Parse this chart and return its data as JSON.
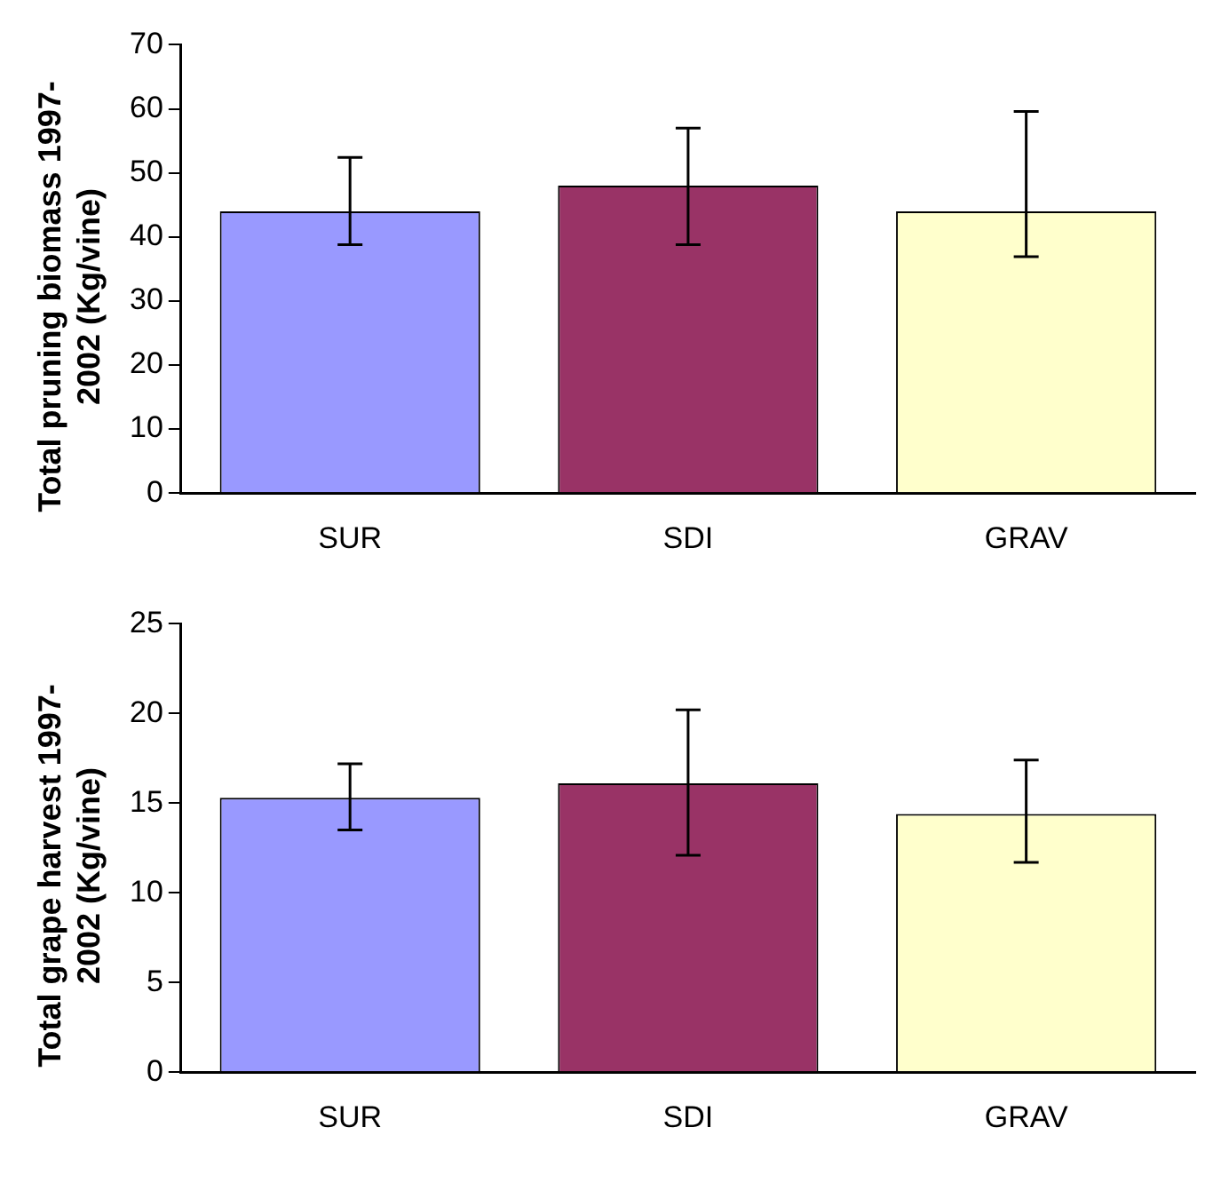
{
  "chart_data": [
    {
      "type": "bar",
      "ylabel": "Total pruning biomass 1997-2002 (Kg/vine)",
      "categories": [
        "SUR",
        "SDI",
        "GRAV"
      ],
      "values": [
        44,
        48,
        44
      ],
      "colors": [
        "#9999ff",
        "#993366",
        "#ffffcc"
      ],
      "errors": [
        [
          38.8,
          52.4
        ],
        [
          38.8,
          57
        ],
        [
          36.9,
          59.6
        ]
      ],
      "ylim": [
        0,
        70
      ],
      "yticks": [
        0,
        10,
        20,
        30,
        40,
        50,
        60,
        70
      ],
      "grid": false,
      "legend": false
    },
    {
      "type": "bar",
      "ylabel": "Total grape harvest 1997-2002 (Kg/vine)",
      "categories": [
        "SUR",
        "SDI",
        "GRAV"
      ],
      "values": [
        15.3,
        16.1,
        14.4
      ],
      "colors": [
        "#9999ff",
        "#993366",
        "#ffffcc"
      ],
      "errors": [
        [
          13.5,
          17.2
        ],
        [
          12.1,
          20.2
        ],
        [
          11.7,
          17.4
        ]
      ],
      "ylim": [
        0,
        25
      ],
      "yticks": [
        0,
        5,
        10,
        15,
        20,
        25
      ],
      "grid": false,
      "legend": false
    }
  ]
}
